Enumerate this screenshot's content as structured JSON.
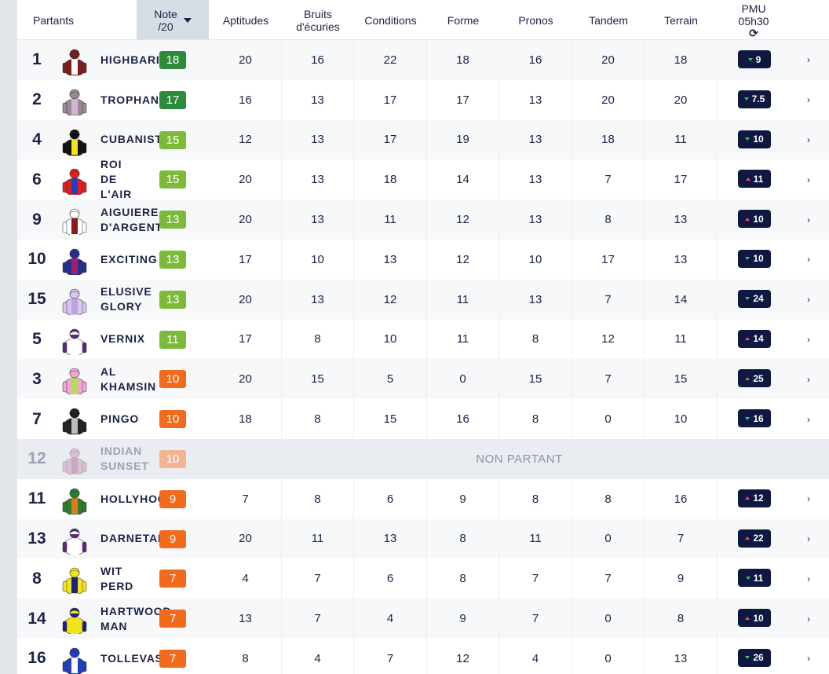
{
  "header": {
    "partants": "Partants",
    "note_line1": "Note",
    "note_line2": "/20",
    "aptitudes": "Aptitudes",
    "bruits_line1": "Bruits",
    "bruits_line2": "d'écuries",
    "conditions": "Conditions",
    "forme": "Forme",
    "pronos": "Pronos",
    "tandem": "Tandem",
    "terrain": "Terrain",
    "pmu_line1": "PMU",
    "pmu_line2": "05h30",
    "refresh_icon": "refresh-icon"
  },
  "colors": {
    "badge_dark_green": "#2e8b3c",
    "badge_green": "#7cbb3a",
    "badge_orange": "#f26a1b",
    "badge_faded": "#f3b591",
    "odds_bg": "#0f1841",
    "odds_down": "#2ecc71",
    "odds_up": "#ff4d6a"
  },
  "non_partant_label": "NON PARTANT",
  "runners": [
    {
      "num": "1",
      "name": "HIGHBARI",
      "note": "18",
      "color": "#2e8b3c",
      "silk": [
        "#7b1e1e",
        "#ffffff",
        "#7b1e1e"
      ],
      "aptitudes": "20",
      "bruits": "16",
      "conditions": "22",
      "forme": "18",
      "pronos": "16",
      "tandem": "20",
      "terrain": "18",
      "odds": "9",
      "trend": "down"
    },
    {
      "num": "2",
      "name": "TROPHANI",
      "note": "17",
      "color": "#2e8b3c",
      "silk": [
        "#9a8a93",
        "#d9b3d3",
        "#9a8a93"
      ],
      "aptitudes": "16",
      "bruits": "13",
      "conditions": "17",
      "forme": "17",
      "pronos": "13",
      "tandem": "20",
      "terrain": "20",
      "odds": "7.5",
      "trend": "down"
    },
    {
      "num": "4",
      "name": "CUBANIST",
      "note": "15",
      "color": "#7cbb3a",
      "silk": [
        "#111111",
        "#f4e21a",
        "#111111"
      ],
      "aptitudes": "12",
      "bruits": "13",
      "conditions": "17",
      "forme": "19",
      "pronos": "13",
      "tandem": "18",
      "terrain": "11",
      "odds": "10",
      "trend": "down"
    },
    {
      "num": "6",
      "name": "ROI\nDE\nL'AIR",
      "note": "15",
      "color": "#7cbb3a",
      "silk": [
        "#e02020",
        "#1e3fbf",
        "#e02020"
      ],
      "aptitudes": "20",
      "bruits": "13",
      "conditions": "18",
      "forme": "14",
      "pronos": "13",
      "tandem": "7",
      "terrain": "17",
      "odds": "11",
      "trend": "up"
    },
    {
      "num": "9",
      "name": "AIGUIERE\nD'ARGENT",
      "note": "13",
      "color": "#7cbb3a",
      "silk": [
        "#ffffff",
        "#8b1a1a",
        "#ffffff"
      ],
      "aptitudes": "20",
      "bruits": "13",
      "conditions": "11",
      "forme": "12",
      "pronos": "13",
      "tandem": "8",
      "terrain": "13",
      "odds": "10",
      "trend": "up"
    },
    {
      "num": "10",
      "name": "EXCITING",
      "note": "13",
      "color": "#7cbb3a",
      "silk": [
        "#23308f",
        "#a0206a",
        "#23308f"
      ],
      "aptitudes": "17",
      "bruits": "10",
      "conditions": "13",
      "forme": "12",
      "pronos": "10",
      "tandem": "17",
      "terrain": "13",
      "odds": "10",
      "trend": "down"
    },
    {
      "num": "15",
      "name": "ELUSIVE\nGLORY",
      "note": "13",
      "color": "#7cbb3a",
      "silk": [
        "#d8c6ef",
        "#b9a3e3",
        "#d8c6ef"
      ],
      "aptitudes": "20",
      "bruits": "13",
      "conditions": "12",
      "forme": "11",
      "pronos": "13",
      "tandem": "7",
      "terrain": "14",
      "odds": "24",
      "trend": "down"
    },
    {
      "num": "5",
      "name": "VERNIX",
      "note": "11",
      "color": "#7cbb3a",
      "silk": [
        "#ffffff",
        "#ffffff",
        "#5a2a7a"
      ],
      "aptitudes": "17",
      "bruits": "8",
      "conditions": "10",
      "forme": "11",
      "pronos": "8",
      "tandem": "12",
      "terrain": "11",
      "odds": "14",
      "trend": "up"
    },
    {
      "num": "3",
      "name": "AL\nKHAMSIN",
      "note": "10",
      "color": "#f26a1b",
      "silk": [
        "#f2a6d6",
        "#b2e04a",
        "#f2a6d6"
      ],
      "aptitudes": "20",
      "bruits": "15",
      "conditions": "5",
      "forme": "0",
      "pronos": "15",
      "tandem": "7",
      "terrain": "15",
      "odds": "25",
      "trend": "up"
    },
    {
      "num": "7",
      "name": "PINGO",
      "note": "10",
      "color": "#f26a1b",
      "silk": [
        "#222222",
        "#bdbdbd",
        "#222222"
      ],
      "aptitudes": "18",
      "bruits": "8",
      "conditions": "15",
      "forme": "16",
      "pronos": "8",
      "tandem": "0",
      "terrain": "10",
      "odds": "16",
      "trend": "down"
    },
    {
      "num": "12",
      "name": "INDIAN\nSUNSET",
      "note": "10",
      "color": "#f3b591",
      "silk": [
        "#c98ab6",
        "#a05a8c",
        "#c98ab6"
      ],
      "non_partant": true
    },
    {
      "num": "11",
      "name": "HOLLYHOCK",
      "note": "9",
      "color": "#f26a1b",
      "silk": [
        "#2f7d2f",
        "#e07a20",
        "#2f7d2f"
      ],
      "aptitudes": "7",
      "bruits": "8",
      "conditions": "6",
      "forme": "9",
      "pronos": "8",
      "tandem": "8",
      "terrain": "16",
      "odds": "12",
      "trend": "up"
    },
    {
      "num": "13",
      "name": "DARNETAL",
      "note": "9",
      "color": "#f26a1b",
      "silk": [
        "#ffffff",
        "#ffffff",
        "#5a2a7a"
      ],
      "aptitudes": "20",
      "bruits": "11",
      "conditions": "13",
      "forme": "8",
      "pronos": "11",
      "tandem": "0",
      "terrain": "7",
      "odds": "22",
      "trend": "up"
    },
    {
      "num": "8",
      "name": "WIT\nPERD",
      "note": "7",
      "color": "#f26a1b",
      "silk": [
        "#f4e21a",
        "#1a237e",
        "#f4e21a"
      ],
      "aptitudes": "4",
      "bruits": "7",
      "conditions": "6",
      "forme": "8",
      "pronos": "7",
      "tandem": "7",
      "terrain": "9",
      "odds": "11",
      "trend": "down"
    },
    {
      "num": "14",
      "name": "HARTWOOD\nMAN",
      "note": "7",
      "color": "#f26a1b",
      "silk": [
        "#f4e21a",
        "#f4e21a",
        "#1a237e"
      ],
      "aptitudes": "13",
      "bruits": "7",
      "conditions": "4",
      "forme": "9",
      "pronos": "7",
      "tandem": "0",
      "terrain": "8",
      "odds": "10",
      "trend": "up"
    },
    {
      "num": "16",
      "name": "TOLLEVAS",
      "note": "7",
      "color": "#f26a1b",
      "silk": [
        "#1e3fbf",
        "#ffffff",
        "#1e3fbf"
      ],
      "aptitudes": "8",
      "bruits": "4",
      "conditions": "7",
      "forme": "12",
      "pronos": "4",
      "tandem": "0",
      "terrain": "13",
      "odds": "26",
      "trend": "down"
    }
  ]
}
